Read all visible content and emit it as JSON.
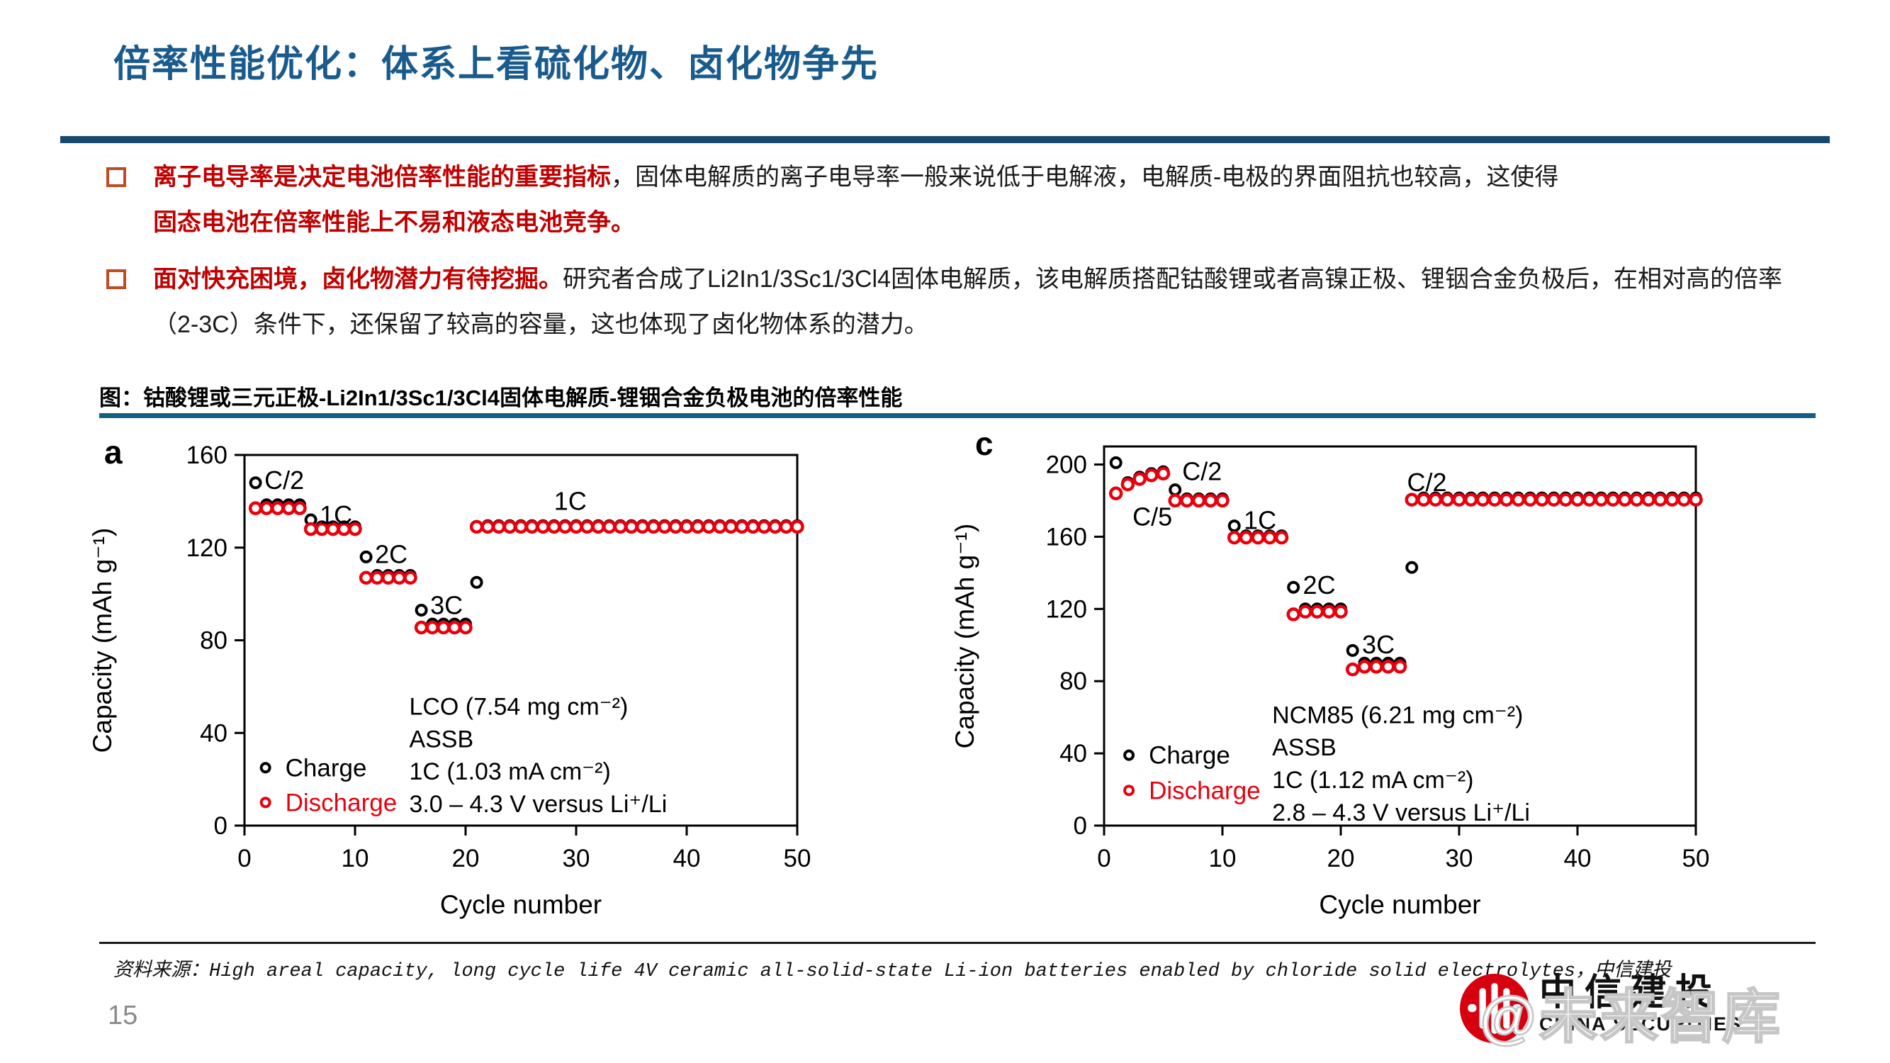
{
  "page": {
    "number": "15"
  },
  "header": {
    "title": "倍率性能优化：体系上看硫化物、卤化物争先"
  },
  "colors": {
    "title_blue": "#1a5b8d",
    "title_rule": "#17496e",
    "caption_rule": "#156082",
    "emphasis_red": "#c00000",
    "bullet_square": "#bf4b27",
    "charge_black": "#000000",
    "discharge_red": "#e8000d",
    "logo_red": "#d7000f"
  },
  "bullets": [
    {
      "lead": "离子电导率是决定电池倍率性能的重要指标",
      "body": "，固体电解质的离子电导率一般来说低于电解液，电解质-电极的界面阻抗也较高，这使得",
      "tail": "固态电池在倍率性能上不易和液态电池竞争。"
    },
    {
      "lead": "面对快充困境，卤化物潜力有待挖掘。",
      "body": "研究者合成了Li2In1/3Sc1/3Cl4固体电解质，该电解质搭配钴酸锂或者高镍正极、锂铟合金负极后，在相对高的倍率（2-3C）条件下，还保留了较高的容量，这也体现了卤化物体系的潜力。"
    }
  ],
  "figure": {
    "caption": "图：钴酸锂或三元正极-Li2In1/3Sc1/3Cl4固体电解质-锂铟合金负极电池的倍率性能"
  },
  "source": {
    "prefix": "资料来源：",
    "citation": "High areal capacity, long cycle life 4V ceramic all-solid-state Li-ion batteries enabled by chloride solid electrolytes",
    "suffix": "，中信建投"
  },
  "footer_logo": {
    "cn": "中信建投",
    "en": "CHINA SECURITIES"
  },
  "watermark": {
    "text": "@未来智库"
  },
  "chart_data": [
    {
      "panel": "a",
      "type": "scatter",
      "xlabel": "Cycle number",
      "ylabel": "Capacity (mAh g⁻¹)",
      "xlim": [
        0,
        50
      ],
      "ylim": [
        0,
        160
      ],
      "xticks": [
        0,
        10,
        20,
        30,
        40,
        50
      ],
      "yticks": [
        0,
        40,
        80,
        120,
        160
      ],
      "colors": {
        "charge": "#000000",
        "discharge": "#e8000d"
      },
      "segments": [
        {
          "rate": "C/2",
          "start": 1,
          "end": 5,
          "charge": [
            148,
            138.5,
            138.5,
            138.5,
            138.5
          ],
          "discharge": [
            137,
            137,
            137,
            137,
            137
          ]
        },
        {
          "rate": "1C",
          "start": 6,
          "end": 10,
          "charge": [
            132,
            129
          ],
          "discharge": [
            128
          ]
        },
        {
          "rate": "2C",
          "start": 11,
          "end": 15,
          "charge": [
            116,
            108
          ],
          "discharge": [
            107
          ]
        },
        {
          "rate": "3C",
          "start": 16,
          "end": 20,
          "charge": [
            93,
            87
          ],
          "discharge": [
            85.5
          ]
        },
        {
          "rate": "1C",
          "start": 21,
          "end": 50,
          "charge": [
            105,
            129.5
          ],
          "discharge": [
            129
          ]
        }
      ],
      "rate_labels": [
        {
          "text": "C/2",
          "cycle": 1.8,
          "value": 149
        },
        {
          "text": "1C",
          "cycle": 6.8,
          "value": 134
        },
        {
          "text": "2C",
          "cycle": 11.8,
          "value": 117
        },
        {
          "text": "3C",
          "cycle": 16.8,
          "value": 95
        },
        {
          "text": "1C",
          "cycle": 28.0,
          "value": 140
        }
      ],
      "legend": {
        "cycle": 1.9,
        "entries": [
          {
            "label": "Charge",
            "value": 25,
            "color": "#000000"
          },
          {
            "label": "Discharge",
            "value": 10,
            "color": "#e8000d"
          }
        ]
      },
      "annotation": {
        "cycle": 14.9,
        "value_start": 51.5,
        "value_step": 14,
        "lines": [
          "LCO (7.54 mg cm⁻²)",
          "ASSB",
          "1C (1.03 mA cm⁻²)",
          "3.0 – 4.3 V versus Li⁺/Li"
        ]
      }
    },
    {
      "panel": "c",
      "type": "scatter",
      "xlabel": "Cycle number",
      "ylabel": "Capacity (mAh g⁻¹)",
      "xlim": [
        0,
        50
      ],
      "ylim": [
        0,
        210
      ],
      "xticks": [
        0,
        10,
        20,
        30,
        40,
        50
      ],
      "yticks": [
        0,
        40,
        80,
        120,
        160,
        200
      ],
      "colors": {
        "charge": "#000000",
        "discharge": "#e8000d"
      },
      "segments": [
        {
          "rate": "C/5",
          "start": 1,
          "end": 5,
          "charge": [
            201,
            190,
            193,
            195,
            196
          ],
          "discharge": [
            184,
            189,
            192,
            194,
            195
          ]
        },
        {
          "rate": "C/2",
          "start": 6,
          "end": 10,
          "charge": [
            186,
            181
          ],
          "discharge": [
            180
          ]
        },
        {
          "rate": "1C",
          "start": 11,
          "end": 15,
          "charge": [
            166,
            160.5
          ],
          "discharge": [
            159.5
          ]
        },
        {
          "rate": "2C",
          "start": 16,
          "end": 20,
          "charge": [
            132,
            120
          ],
          "discharge": [
            117,
            118.5
          ]
        },
        {
          "rate": "3C",
          "start": 21,
          "end": 25,
          "charge": [
            97,
            90
          ],
          "discharge": [
            86.5,
            88
          ]
        },
        {
          "rate": "C/2",
          "start": 26,
          "end": 50,
          "charge": [
            143,
            181.5
          ],
          "discharge": [
            180.5
          ]
        }
      ],
      "rate_labels": [
        {
          "text": "C/5",
          "cycle": 2.4,
          "value": 171
        },
        {
          "text": "C/2",
          "cycle": 6.6,
          "value": 196
        },
        {
          "text": "1C",
          "cycle": 11.8,
          "value": 169
        },
        {
          "text": "2C",
          "cycle": 16.8,
          "value": 133
        },
        {
          "text": "3C",
          "cycle": 21.8,
          "value": 100
        },
        {
          "text": "C/2",
          "cycle": 25.6,
          "value": 190
        }
      ],
      "legend": {
        "cycle": 2.1,
        "entries": [
          {
            "label": "Charge",
            "value": 39,
            "color": "#000000"
          },
          {
            "label": "Discharge",
            "value": 19.5,
            "color": "#e8000d"
          }
        ]
      },
      "annotation": {
        "cycle": 14.2,
        "value_start": 61.5,
        "value_step": 18,
        "lines": [
          "NCM85 (6.21 mg cm⁻²)",
          "ASSB",
          "1C (1.12 mA cm⁻²)",
          "2.8 – 4.3 V versus Li⁺/Li"
        ]
      }
    }
  ]
}
